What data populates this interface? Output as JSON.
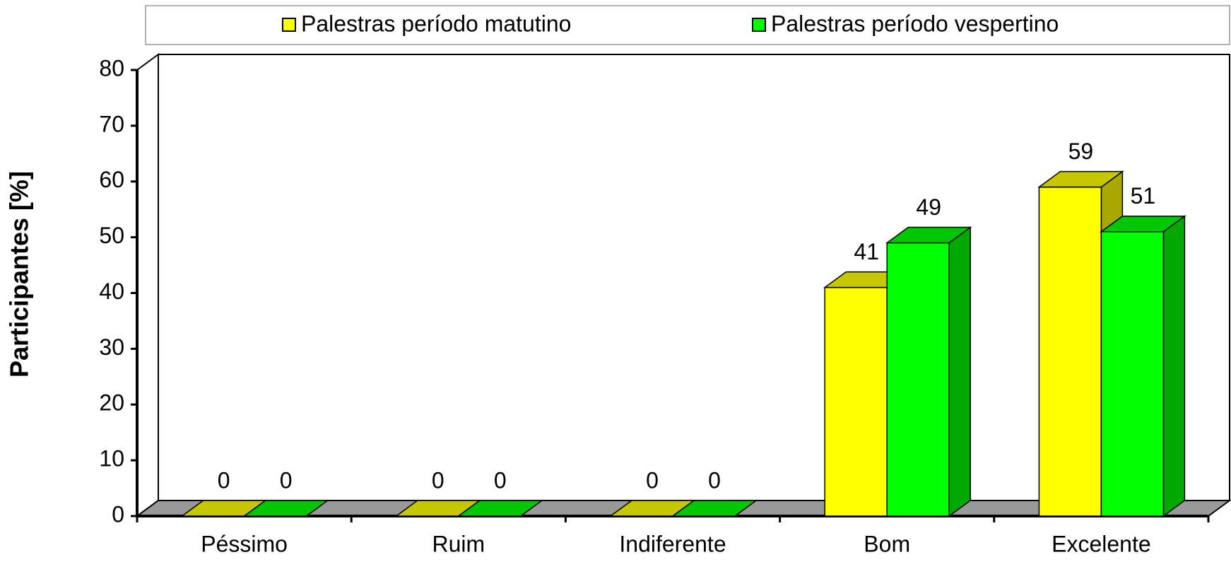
{
  "chart_data": {
    "type": "bar3d",
    "ylabel": "Participantes [%]",
    "categories": [
      "Péssimo",
      "Ruim",
      "Indiferente",
      "Bom",
      "Excelente"
    ],
    "series": [
      {
        "name": "Palestras período matutino",
        "color": "#ffff00",
        "values": [
          0,
          0,
          0,
          41,
          59
        ]
      },
      {
        "name": "Palestras período vespertino",
        "color": "#00ff00",
        "values": [
          0,
          0,
          0,
          49,
          51
        ]
      }
    ],
    "ylim": [
      0,
      80
    ],
    "yticks": [
      0,
      10,
      20,
      30,
      40,
      50,
      60,
      70,
      80
    ],
    "legend": "top",
    "grid": false
  }
}
